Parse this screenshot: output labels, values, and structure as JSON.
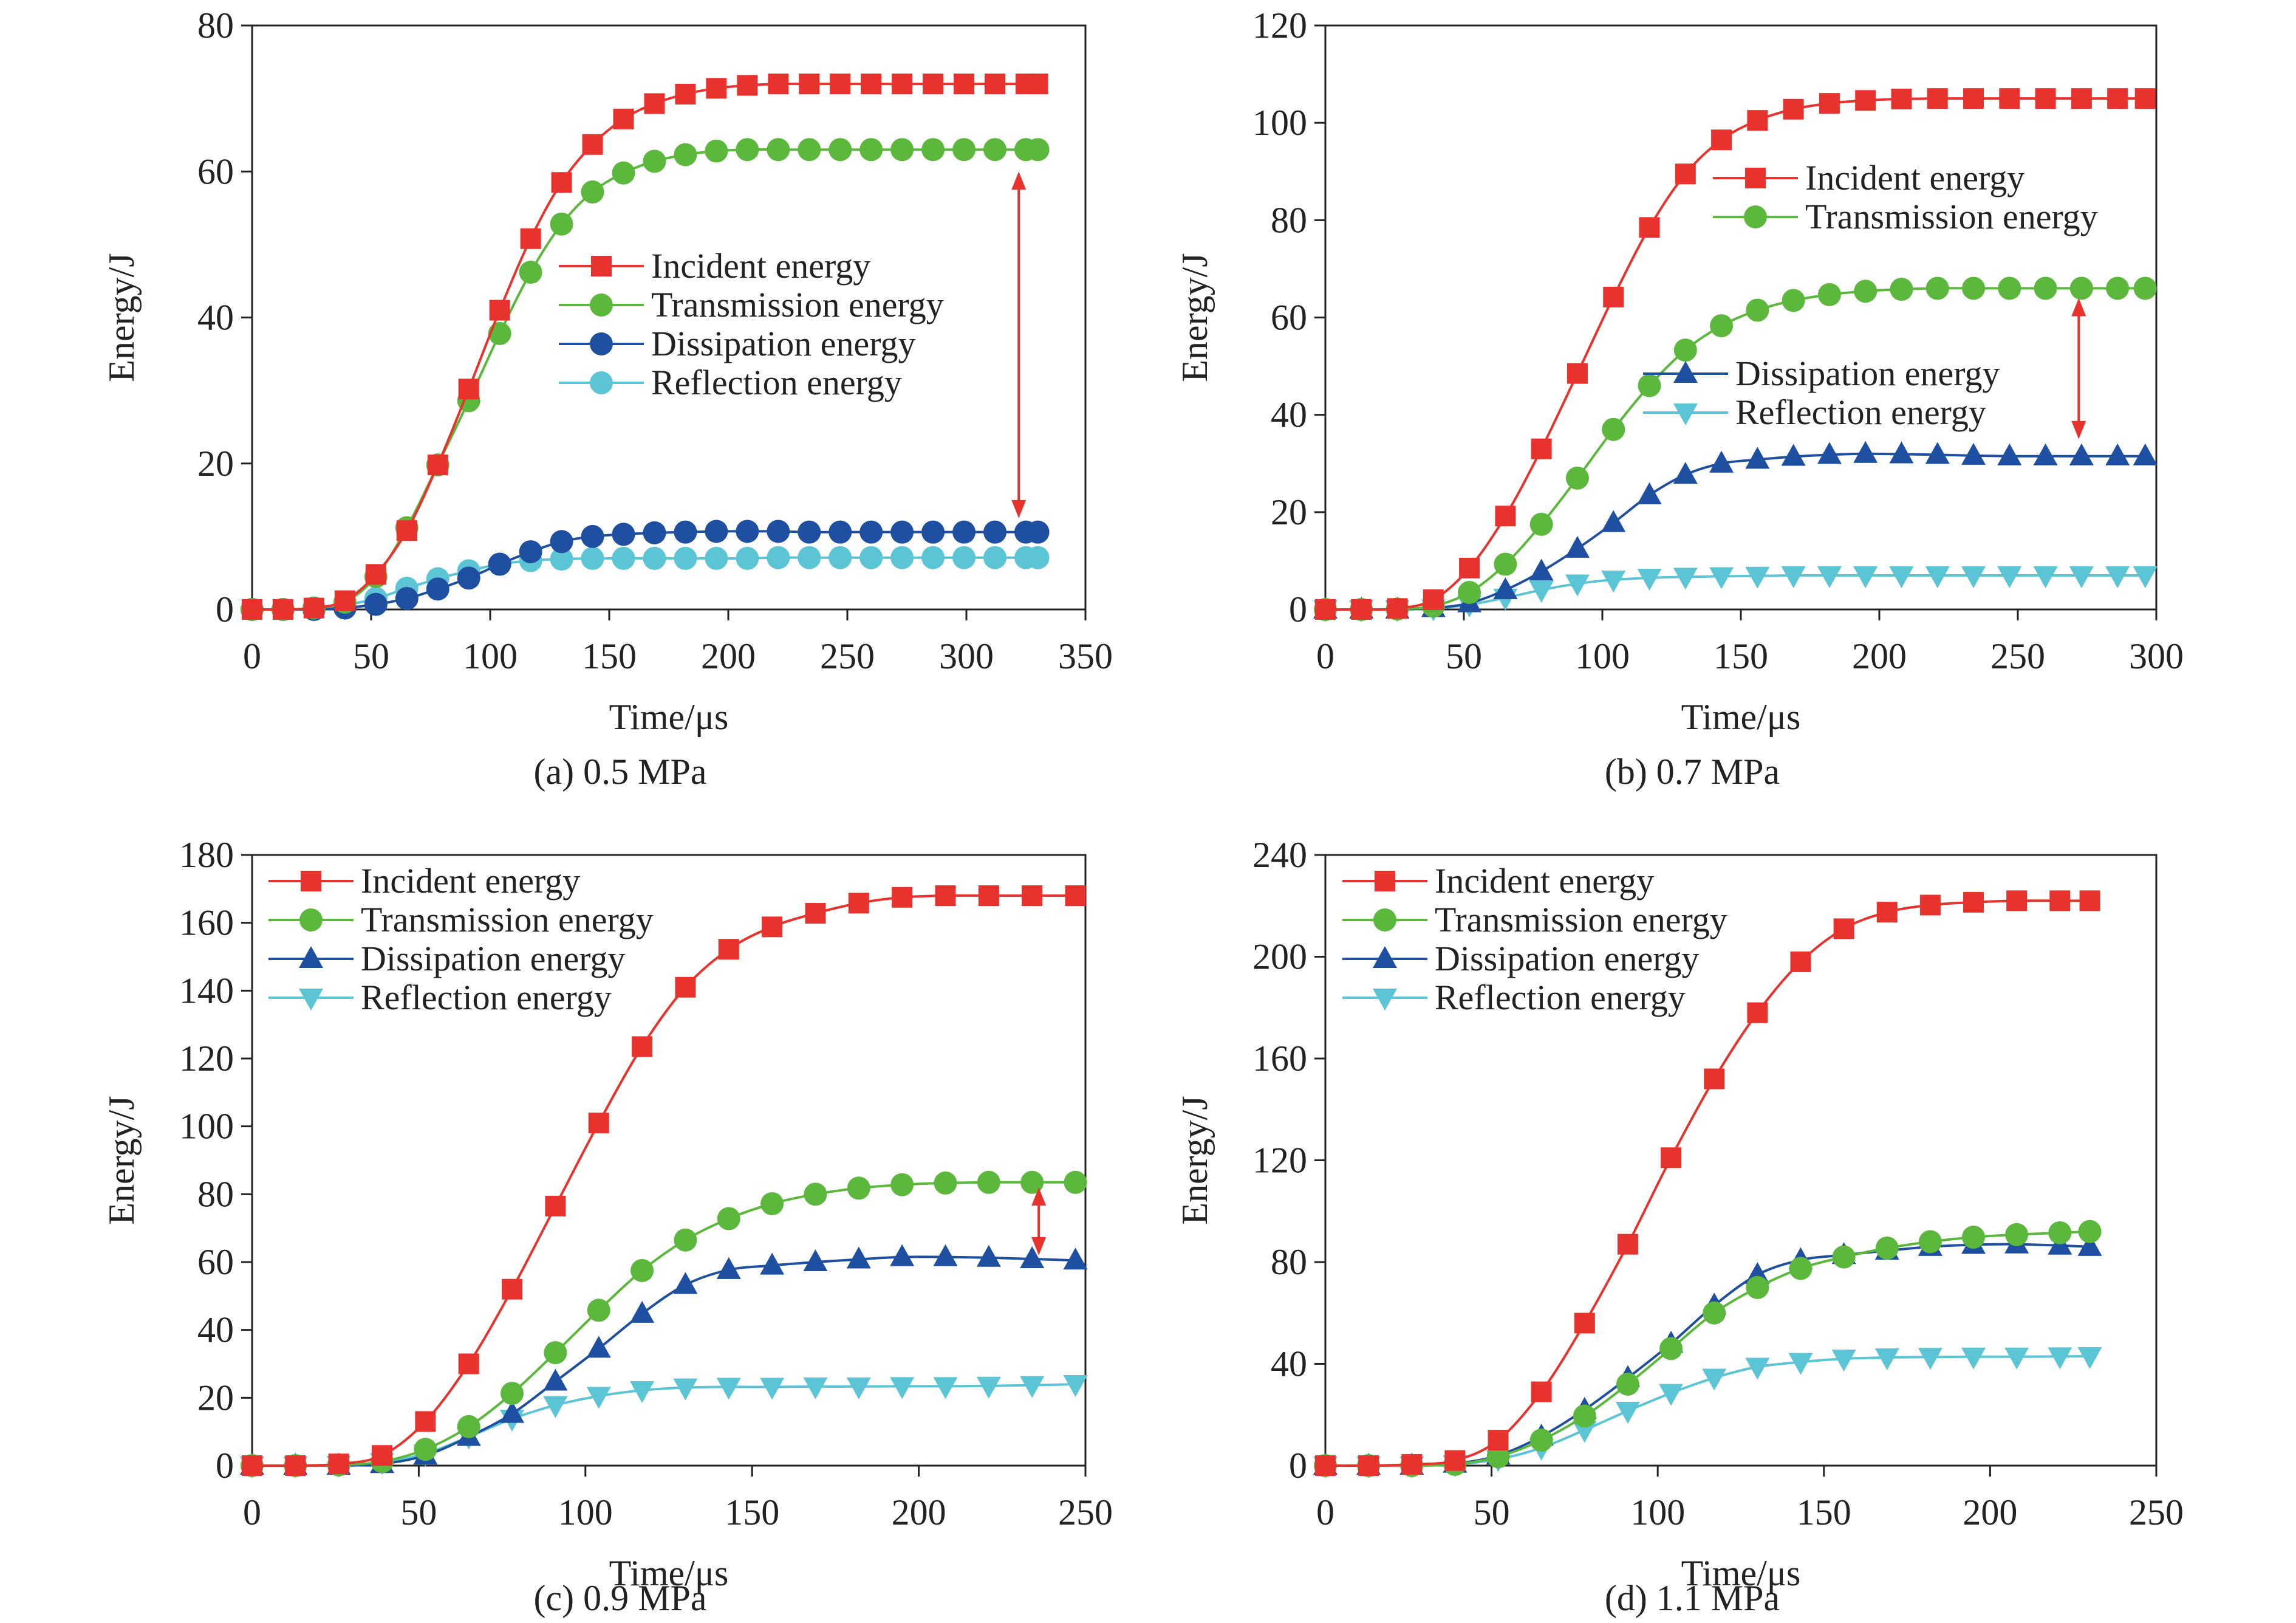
{
  "chart_data": [
    {
      "type": "line",
      "caption": "(a) 0.5 MPa",
      "xlabel": "Time/μs",
      "ylabel": "Energy/J",
      "xlim": [
        0,
        350
      ],
      "ylim": [
        0,
        80
      ],
      "xticks": [
        0,
        50,
        100,
        150,
        200,
        250,
        300,
        350
      ],
      "yticks": [
        0,
        20,
        40,
        60,
        80
      ],
      "legend_position": "middle-center",
      "legend_order": [
        0,
        1,
        2,
        3
      ],
      "series": [
        {
          "name": "Incident energy",
          "color": "#e8322d",
          "marker": "square",
          "x": [
            0,
            13,
            26,
            39,
            52,
            65,
            78,
            91,
            104,
            117,
            130,
            143,
            156,
            169,
            182,
            195,
            208,
            221,
            234,
            247,
            260,
            273,
            286,
            299,
            312,
            325,
            330
          ],
          "y": [
            0,
            0,
            0.2,
            1.2,
            4.8,
            10.8,
            19.8,
            30.2,
            41,
            50.8,
            58.5,
            63.7,
            67.2,
            69.3,
            70.6,
            71.4,
            71.8,
            72,
            72,
            72,
            72,
            72,
            72,
            72,
            72,
            72,
            72
          ]
        },
        {
          "name": "Transmission energy",
          "color": "#5cb83c",
          "marker": "circle",
          "x": [
            0,
            13,
            26,
            39,
            52,
            65,
            78,
            91,
            104,
            117,
            130,
            143,
            156,
            169,
            182,
            195,
            208,
            221,
            234,
            247,
            260,
            273,
            286,
            299,
            312,
            325,
            330
          ],
          "y": [
            0,
            0,
            0.2,
            1,
            4.5,
            11.2,
            19.8,
            28.6,
            37.8,
            46.2,
            52.8,
            57.2,
            59.8,
            61.4,
            62.3,
            62.8,
            63,
            63,
            63,
            63,
            63,
            63,
            63,
            63,
            63,
            63,
            63
          ]
        },
        {
          "name": "Dissipation energy",
          "color": "#1f4fa0",
          "marker": "circle",
          "x": [
            0,
            13,
            26,
            39,
            52,
            65,
            78,
            91,
            104,
            117,
            130,
            143,
            156,
            169,
            182,
            195,
            208,
            221,
            234,
            247,
            260,
            273,
            286,
            299,
            312,
            325,
            330
          ],
          "y": [
            0,
            0,
            0,
            0.2,
            0.7,
            1.5,
            2.8,
            4.3,
            6.2,
            7.9,
            9.3,
            10,
            10.3,
            10.5,
            10.6,
            10.7,
            10.7,
            10.7,
            10.6,
            10.6,
            10.6,
            10.6,
            10.6,
            10.6,
            10.6,
            10.6,
            10.6
          ]
        },
        {
          "name": "Reflection energy",
          "color": "#5bc5d6",
          "marker": "circle",
          "x": [
            0,
            13,
            26,
            39,
            52,
            65,
            78,
            91,
            104,
            117,
            130,
            143,
            156,
            169,
            182,
            195,
            208,
            221,
            234,
            247,
            260,
            273,
            286,
            299,
            312,
            325,
            330
          ],
          "y": [
            0,
            0,
            0.1,
            0.6,
            1.5,
            2.9,
            4.2,
            5.3,
            6.2,
            6.7,
            6.9,
            7,
            7,
            7,
            7,
            7,
            7,
            7.1,
            7.1,
            7.1,
            7.1,
            7.1,
            7.1,
            7.1,
            7.1,
            7.1,
            7.1
          ]
        }
      ],
      "annotation": {
        "type": "double-arrow",
        "color": "#e8322d",
        "x": 322,
        "y_from": 60,
        "y_to": 12.5
      }
    },
    {
      "type": "line",
      "caption": "(b) 0.7 MPa",
      "xlabel": "Time/μs",
      "ylabel": "Energy/J",
      "xlim": [
        0,
        300
      ],
      "ylim": [
        0,
        120
      ],
      "xticks": [
        0,
        50,
        100,
        150,
        200,
        250,
        300
      ],
      "yticks": [
        0,
        20,
        40,
        60,
        80,
        100,
        120
      ],
      "legend_position": "split",
      "legend_order": [
        0,
        1,
        2,
        3
      ],
      "series": [
        {
          "name": "Incident energy",
          "color": "#e8322d",
          "marker": "square",
          "x": [
            0,
            13,
            26,
            39,
            52,
            65,
            78,
            91,
            104,
            117,
            130,
            143,
            156,
            169,
            182,
            195,
            208,
            221,
            234,
            247,
            260,
            273,
            286,
            296
          ],
          "y": [
            0,
            0,
            0.2,
            2,
            8.5,
            19.2,
            33,
            48.5,
            64.2,
            78.5,
            89.5,
            96.5,
            100.5,
            102.8,
            104,
            104.6,
            104.9,
            105,
            105,
            105,
            105,
            105,
            105,
            105
          ]
        },
        {
          "name": "Transmission energy",
          "color": "#5cb83c",
          "marker": "circle",
          "x": [
            0,
            13,
            26,
            39,
            52,
            65,
            78,
            91,
            104,
            117,
            130,
            143,
            156,
            169,
            182,
            195,
            208,
            221,
            234,
            247,
            260,
            273,
            286,
            296
          ],
          "y": [
            0,
            0,
            0.1,
            0.7,
            3.5,
            9.3,
            17.5,
            27,
            37,
            46,
            53.3,
            58.3,
            61.5,
            63.5,
            64.7,
            65.4,
            65.8,
            66,
            66,
            66,
            66,
            66,
            66,
            66
          ]
        },
        {
          "name": "Dissipation energy",
          "color": "#1f4fa0",
          "marker": "triangle-up",
          "x": [
            0,
            13,
            26,
            39,
            52,
            65,
            78,
            91,
            104,
            117,
            130,
            143,
            156,
            169,
            182,
            195,
            208,
            221,
            234,
            247,
            260,
            273,
            286,
            296
          ],
          "y": [
            0,
            0,
            0,
            0.3,
            1.3,
            4,
            7.8,
            12.5,
            17.8,
            23.5,
            27.7,
            30,
            30.8,
            31.4,
            31.8,
            32,
            31.9,
            31.8,
            31.6,
            31.5,
            31.5,
            31.5,
            31.5,
            31.5
          ]
        },
        {
          "name": "Reflection energy",
          "color": "#5bc5d6",
          "marker": "triangle-down",
          "x": [
            0,
            13,
            26,
            39,
            52,
            65,
            78,
            91,
            104,
            117,
            130,
            143,
            156,
            169,
            182,
            195,
            208,
            221,
            234,
            247,
            260,
            273,
            286,
            296
          ],
          "y": [
            0,
            0,
            0,
            0.2,
            1,
            2.4,
            4,
            5.3,
            6.1,
            6.5,
            6.7,
            6.8,
            6.9,
            7,
            7,
            7,
            7,
            7,
            7,
            7,
            7,
            7,
            7,
            7
          ]
        }
      ],
      "annotation": {
        "type": "double-arrow",
        "color": "#e8322d",
        "x": 272,
        "y_from": 64,
        "y_to": 35
      }
    },
    {
      "type": "line",
      "caption": "(c) 0.9 MPa",
      "xlabel": "Time/μs",
      "ylabel": "Energy/J",
      "xlim": [
        0,
        250
      ],
      "ylim": [
        0,
        180
      ],
      "xticks": [
        0,
        50,
        100,
        150,
        200,
        250
      ],
      "yticks": [
        0,
        20,
        40,
        60,
        80,
        100,
        120,
        140,
        160,
        180
      ],
      "legend_position": "top-left",
      "legend_order": [
        0,
        1,
        2,
        3
      ],
      "series": [
        {
          "name": "Incident energy",
          "color": "#e8322d",
          "marker": "square",
          "x": [
            0,
            13,
            26,
            39,
            52,
            65,
            78,
            91,
            104,
            117,
            130,
            143,
            156,
            169,
            182,
            195,
            208,
            221,
            234,
            247
          ],
          "y": [
            0,
            0,
            0.5,
            3,
            13,
            30,
            52,
            76.5,
            101,
            123.5,
            141,
            152.2,
            158.8,
            162.8,
            165.8,
            167.5,
            168,
            168,
            168,
            168
          ]
        },
        {
          "name": "Transmission energy",
          "color": "#5cb83c",
          "marker": "circle",
          "x": [
            0,
            13,
            26,
            39,
            52,
            65,
            78,
            91,
            104,
            117,
            130,
            143,
            156,
            169,
            182,
            195,
            208,
            221,
            234,
            247
          ],
          "y": [
            0,
            0,
            0.2,
            1.2,
            4.8,
            11.5,
            21.3,
            33.3,
            45.8,
            57.5,
            66.5,
            72.8,
            77.2,
            80,
            81.8,
            82.8,
            83.3,
            83.5,
            83.5,
            83.5
          ]
        },
        {
          "name": "Dissipation energy",
          "color": "#1f4fa0",
          "marker": "triangle-up",
          "x": [
            0,
            13,
            26,
            39,
            52,
            65,
            78,
            91,
            104,
            117,
            130,
            143,
            156,
            169,
            182,
            195,
            208,
            221,
            234,
            247
          ],
          "y": [
            0,
            0,
            0,
            0.5,
            3,
            8.5,
            15.3,
            24.8,
            34.5,
            44.8,
            53.3,
            57.7,
            59,
            60,
            60.8,
            61.5,
            61.5,
            61.3,
            60.9,
            60.5
          ]
        },
        {
          "name": "Reflection energy",
          "color": "#5bc5d6",
          "marker": "triangle-down",
          "x": [
            0,
            13,
            26,
            39,
            52,
            65,
            78,
            91,
            104,
            117,
            130,
            143,
            156,
            169,
            182,
            195,
            208,
            221,
            234,
            247
          ],
          "y": [
            0,
            0,
            0.2,
            1,
            3.5,
            8.5,
            13.8,
            17.8,
            20.5,
            22.2,
            23,
            23.2,
            23.2,
            23.3,
            23.3,
            23.4,
            23.4,
            23.5,
            23.7,
            24
          ]
        }
      ],
      "annotation": {
        "type": "double-arrow",
        "color": "#e8322d",
        "x": 236,
        "y_from": 82,
        "y_to": 62
      }
    },
    {
      "type": "line",
      "caption": "(d) 1.1 MPa",
      "xlabel": "Time/μs",
      "ylabel": "Energy/J",
      "xlim": [
        0,
        250
      ],
      "ylim": [
        0,
        240
      ],
      "xticks": [
        0,
        50,
        100,
        150,
        200,
        250
      ],
      "yticks": [
        0,
        40,
        80,
        120,
        160,
        200,
        240
      ],
      "legend_position": "top-left",
      "legend_order": [
        0,
        1,
        2,
        3
      ],
      "series": [
        {
          "name": "Incident energy",
          "color": "#e8322d",
          "marker": "square",
          "x": [
            0,
            13,
            26,
            39,
            52,
            65,
            78,
            91,
            104,
            117,
            130,
            143,
            156,
            169,
            182,
            195,
            208,
            221,
            230
          ],
          "y": [
            0,
            0,
            0.5,
            2,
            10,
            29,
            56,
            87,
            121,
            152,
            178,
            198,
            211,
            217.5,
            220.3,
            221.4,
            222,
            222,
            222
          ]
        },
        {
          "name": "Transmission energy",
          "color": "#5cb83c",
          "marker": "circle",
          "x": [
            0,
            13,
            26,
            39,
            52,
            65,
            78,
            91,
            104,
            117,
            130,
            143,
            156,
            169,
            182,
            195,
            208,
            221,
            230
          ],
          "y": [
            0,
            0,
            0,
            0.5,
            3.5,
            10,
            19.5,
            32,
            46,
            60,
            70,
            77.5,
            82,
            85.5,
            88,
            89.8,
            90.8,
            91.5,
            92
          ]
        },
        {
          "name": "Dissipation energy",
          "color": "#1f4fa0",
          "marker": "triangle-up",
          "x": [
            0,
            13,
            26,
            39,
            52,
            65,
            78,
            91,
            104,
            117,
            130,
            143,
            156,
            169,
            182,
            195,
            208,
            221,
            230
          ],
          "y": [
            0,
            0,
            0,
            0.8,
            4,
            11.5,
            22,
            34.5,
            48,
            63,
            75,
            80.8,
            82.8,
            84.5,
            86,
            86.8,
            87,
            86.5,
            86
          ]
        },
        {
          "name": "Reflection energy",
          "color": "#5bc5d6",
          "marker": "triangle-down",
          "x": [
            0,
            13,
            26,
            39,
            52,
            65,
            78,
            91,
            104,
            117,
            130,
            143,
            156,
            169,
            182,
            195,
            208,
            221,
            230
          ],
          "y": [
            0,
            0,
            0,
            0.5,
            2.5,
            7,
            14,
            21.5,
            28.5,
            34.5,
            38.8,
            40.7,
            42,
            42.5,
            42.7,
            42.8,
            42.8,
            42.9,
            43
          ]
        }
      ],
      "annotation": null
    }
  ]
}
